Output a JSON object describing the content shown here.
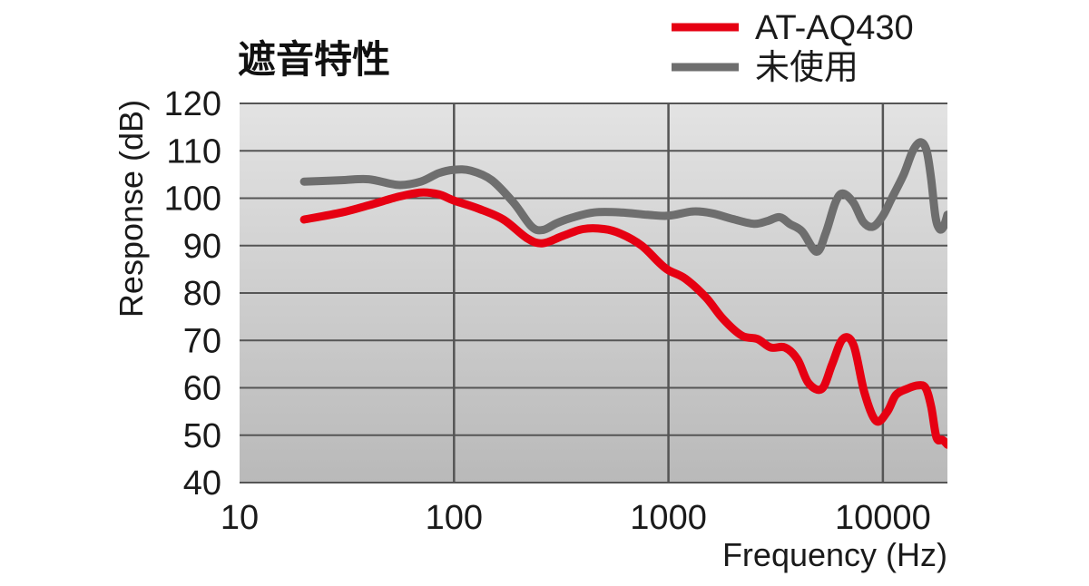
{
  "chart_data": {
    "type": "line",
    "title": "遮音特性",
    "xlabel": "Frequency (Hz)",
    "ylabel": "Response (dB)",
    "x_scale": "log",
    "xlim": [
      10,
      20000
    ],
    "ylim": [
      40,
      120
    ],
    "x_ticks": [
      {
        "value": 10,
        "label": "10"
      },
      {
        "value": 100,
        "label": "100"
      },
      {
        "value": 1000,
        "label": "1000"
      },
      {
        "value": 10000,
        "label": "10000"
      }
    ],
    "y_ticks": [
      {
        "value": 40,
        "label": "40"
      },
      {
        "value": 50,
        "label": "50"
      },
      {
        "value": 60,
        "label": "60"
      },
      {
        "value": 70,
        "label": "70"
      },
      {
        "value": 80,
        "label": "80"
      },
      {
        "value": 90,
        "label": "90"
      },
      {
        "value": 100,
        "label": "100"
      },
      {
        "value": 110,
        "label": "110"
      },
      {
        "value": 120,
        "label": "120"
      }
    ],
    "grid": true,
    "legend_position": "top-right",
    "series": [
      {
        "name": "AT-AQ430",
        "color": "#e60012",
        "x": [
          20,
          30,
          40,
          55,
          70,
          85,
          100,
          130,
          170,
          220,
          260,
          320,
          400,
          500,
          600,
          750,
          900,
          1000,
          1200,
          1500,
          1800,
          2200,
          2600,
          3000,
          3500,
          4000,
          4500,
          5200,
          5800,
          6500,
          7300,
          8200,
          9300,
          10500,
          11500,
          13000,
          14500,
          15800,
          16800,
          17800,
          19000,
          20000
        ],
        "values": [
          95.5,
          97,
          98.5,
          100.3,
          101.2,
          100.8,
          99.5,
          97.8,
          95.5,
          91.5,
          90.5,
          92,
          93.5,
          93.5,
          92.5,
          90,
          86.5,
          84.8,
          83,
          79,
          74.5,
          71,
          70.3,
          68.5,
          68.5,
          66,
          61,
          59.8,
          65,
          70.3,
          69,
          59,
          53,
          55,
          58.5,
          59.8,
          60.5,
          60,
          56,
          49.5,
          49,
          48
        ]
      },
      {
        "name": "未使用",
        "color": "#6e6e6e",
        "x": [
          20,
          30,
          40,
          55,
          70,
          85,
          100,
          120,
          150,
          190,
          230,
          260,
          300,
          350,
          450,
          600,
          800,
          1000,
          1300,
          1600,
          2000,
          2500,
          2900,
          3300,
          3700,
          4200,
          4900,
          5400,
          6000,
          6500,
          7300,
          8100,
          9000,
          10000,
          11000,
          12500,
          13800,
          15000,
          16000,
          16800,
          17600,
          18400,
          19200,
          20000
        ],
        "values": [
          103.5,
          103.8,
          104,
          102.8,
          103.5,
          105.3,
          106,
          105.8,
          103.8,
          99,
          94,
          93.3,
          94.7,
          95.8,
          97,
          97,
          96.5,
          96.3,
          97.2,
          96.8,
          95.6,
          94.6,
          95.2,
          96,
          94.5,
          93,
          88.7,
          92.5,
          99,
          101,
          99,
          95,
          94,
          96.3,
          100,
          105,
          110,
          111.8,
          110,
          104,
          96,
          93.5,
          94,
          96.5
        ]
      }
    ]
  }
}
